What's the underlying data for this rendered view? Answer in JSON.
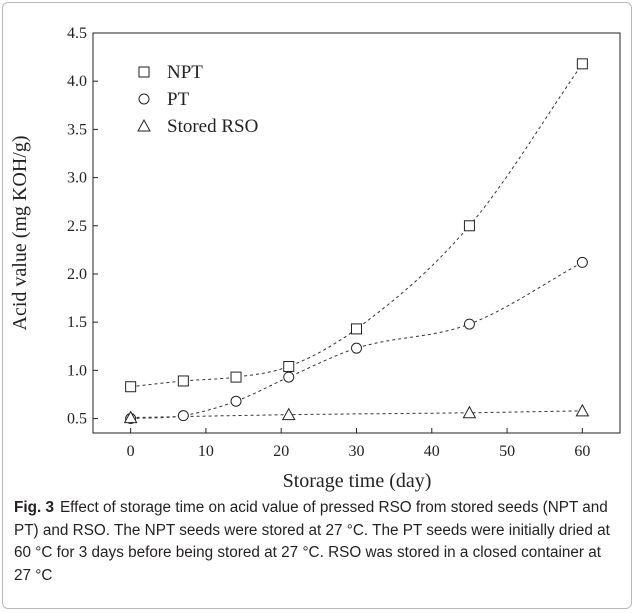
{
  "chart_data": {
    "type": "scatter",
    "xlabel": "Storage time (day)",
    "ylabel": "Acid value (mg KOH/g)",
    "xlim": [
      -5,
      65
    ],
    "ylim": [
      0.35,
      4.5
    ],
    "xticks": [
      0,
      10,
      20,
      30,
      40,
      50,
      60
    ],
    "xtick_labels": [
      "0",
      "10",
      "20",
      "30",
      "40",
      "50",
      "60"
    ],
    "yticks": [
      0.5,
      1.0,
      1.5,
      2.0,
      2.5,
      3.0,
      3.5,
      4.0,
      4.5
    ],
    "ytick_labels": [
      "0.5",
      "1.0",
      "1.5",
      "2.0",
      "2.5",
      "3.0",
      "3.5",
      "4.0",
      "4.5"
    ],
    "grid": false,
    "legend_position": "top-left",
    "fit_lines": "dashed",
    "series": [
      {
        "name": "NPT",
        "marker": "square",
        "x": [
          0,
          7,
          14,
          21,
          30,
          45,
          60
        ],
        "y": [
          0.83,
          0.89,
          0.93,
          1.04,
          1.43,
          2.5,
          4.18
        ]
      },
      {
        "name": "PT",
        "marker": "circle",
        "x": [
          0,
          7,
          14,
          21,
          30,
          45,
          60
        ],
        "y": [
          0.5,
          0.53,
          0.68,
          0.93,
          1.23,
          1.48,
          2.12
        ]
      },
      {
        "name": "Stored RSO",
        "marker": "triangle",
        "x": [
          0,
          21,
          45,
          60
        ],
        "y": [
          0.51,
          0.54,
          0.56,
          0.58
        ]
      }
    ]
  },
  "caption": {
    "label": "Fig. 3",
    "text": "Effect of storage time on acid value of pressed RSO from stored seeds (NPT and PT) and RSO. The NPT seeds were stored at 27 °C. The PT seeds were initially dried at 60 °C for 3 days before being stored at 27 °C. RSO was stored in a closed container at 27 °C"
  }
}
